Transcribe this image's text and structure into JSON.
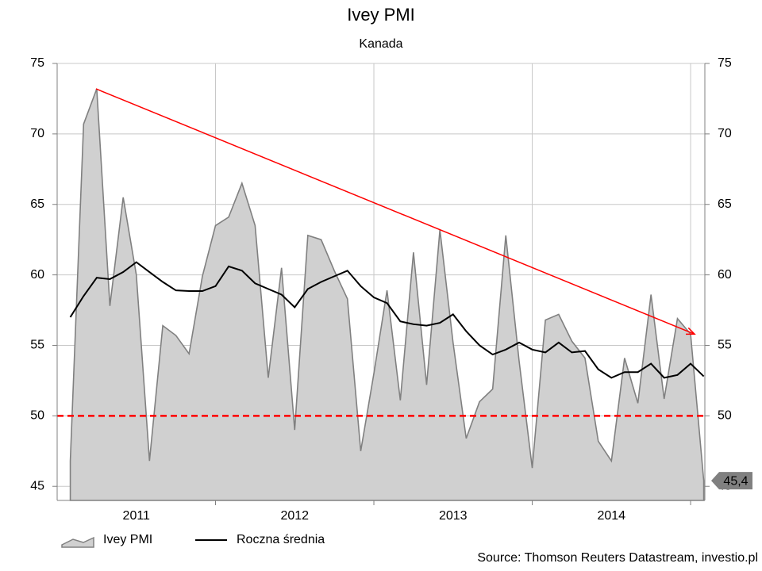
{
  "chart_data": {
    "type": "line",
    "title": "Ivey PMI",
    "subtitle": "Kanada",
    "source": "Source: Thomson Reuters Datastream, investio.pl",
    "x": [
      2011.083,
      2011.167,
      2011.25,
      2011.333,
      2011.417,
      2011.5,
      2011.583,
      2011.667,
      2011.75,
      2011.833,
      2011.917,
      2012.0,
      2012.083,
      2012.167,
      2012.25,
      2012.333,
      2012.417,
      2012.5,
      2012.583,
      2012.667,
      2012.75,
      2012.833,
      2012.917,
      2013.0,
      2013.083,
      2013.167,
      2013.25,
      2013.333,
      2013.417,
      2013.5,
      2013.583,
      2013.667,
      2013.75,
      2013.833,
      2013.917,
      2014.0,
      2014.083,
      2014.167,
      2014.25,
      2014.333,
      2014.417,
      2014.5,
      2014.583,
      2014.667,
      2014.75,
      2014.833,
      2014.917,
      2015.0,
      2015.083
    ],
    "series": [
      {
        "name": "Ivey PMI",
        "color": "#808080",
        "fill": "#d0d0d0",
        "values": [
          46.8,
          70.7,
          73.2,
          57.8,
          65.5,
          60.0,
          46.8,
          56.4,
          55.7,
          54.4,
          59.9,
          63.5,
          64.1,
          66.5,
          63.5,
          52.7,
          60.5,
          49.0,
          62.8,
          62.5,
          60.3,
          58.3,
          47.5,
          53.0,
          58.9,
          51.1,
          61.6,
          52.2,
          63.2,
          55.2,
          48.4,
          51.0,
          51.9,
          62.8,
          53.9,
          46.3,
          56.8,
          57.2,
          55.3,
          54.1,
          48.2,
          46.8,
          54.1,
          50.9,
          58.6,
          51.2,
          56.9,
          55.8,
          45.4
        ]
      },
      {
        "name": "Roczna średnia",
        "color": "#000000",
        "values": [
          57.0,
          58.5,
          59.8,
          59.7,
          60.2,
          60.9,
          60.2,
          59.5,
          58.9,
          58.85,
          58.85,
          59.2,
          60.6,
          60.3,
          59.4,
          59.0,
          58.6,
          57.7,
          59.0,
          59.5,
          59.9,
          60.3,
          59.2,
          58.4,
          58.0,
          56.7,
          56.5,
          56.4,
          56.6,
          57.2,
          56.0,
          55.0,
          54.35,
          54.7,
          55.2,
          54.7,
          54.5,
          55.2,
          54.5,
          54.6,
          53.3,
          52.7,
          53.1,
          53.1,
          53.7,
          52.7,
          52.9,
          53.7,
          52.8
        ]
      }
    ],
    "last_value_label": {
      "value": 45.4,
      "label": "45,4"
    },
    "reference_line": {
      "value": 50,
      "color": "#ff0000"
    },
    "trend": {
      "x": [
        2011.245,
        2015.025
      ],
      "values": [
        73.2,
        55.8
      ],
      "color": "#ff0000"
    },
    "xlim": [
      2011.0,
      2015.09
    ],
    "xticks": [
      {
        "value": 2011.5,
        "label": "2011"
      },
      {
        "value": 2012.5,
        "label": "2012"
      },
      {
        "value": 2013.5,
        "label": "2013"
      },
      {
        "value": 2014.5,
        "label": "2014"
      }
    ],
    "xgrid": [
      2012,
      2013,
      2014,
      2015
    ],
    "ylim": [
      44,
      75
    ],
    "yticks": [
      45,
      50,
      55,
      60,
      65,
      70,
      75
    ],
    "y2lim": [
      44,
      75
    ],
    "y2ticks": [
      45,
      50,
      55,
      60,
      65,
      70,
      75
    ],
    "grid": true
  }
}
